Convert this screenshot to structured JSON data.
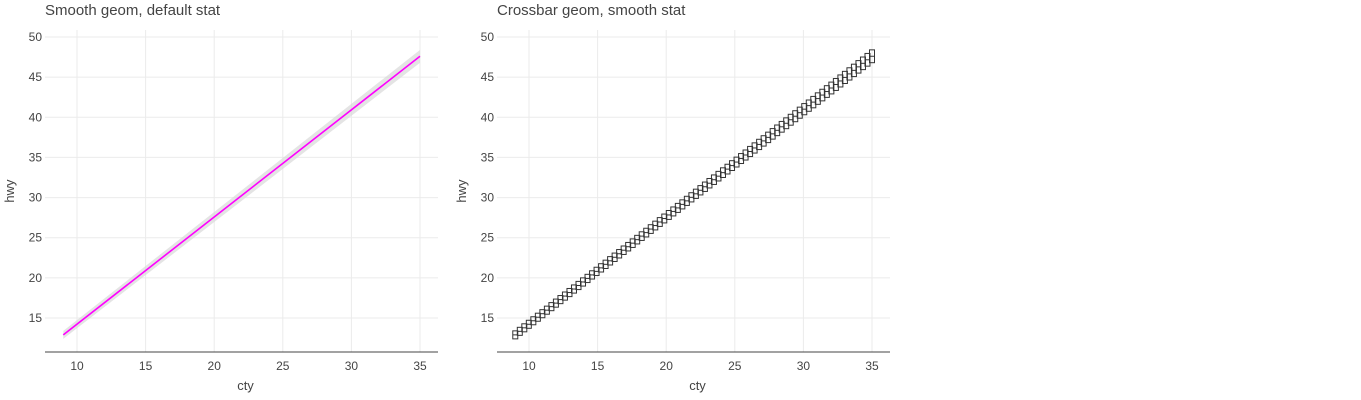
{
  "chart_data": [
    {
      "type": "line",
      "title": "Smooth geom, default stat",
      "xlabel": "cty",
      "ylabel": "hwy",
      "xlim": [
        8,
        36
      ],
      "ylim": [
        10.5,
        51.5
      ],
      "xticks": [
        10,
        15,
        20,
        25,
        30,
        35
      ],
      "yticks": [
        15,
        20,
        25,
        30,
        35,
        40,
        45,
        50
      ],
      "grid": true,
      "colors": {
        "line": "#ff00ff",
        "band": "#d9d9d9"
      },
      "series": [
        {
          "x": [
            9,
            35
          ],
          "y": [
            12.9,
            47.6
          ],
          "ymin": [
            12.4,
            46.8
          ],
          "ymax": [
            13.4,
            48.4
          ]
        }
      ]
    },
    {
      "type": "crossbar",
      "title": "Crossbar geom, smooth stat",
      "xlabel": "cty",
      "ylabel": "hwy",
      "xlim": [
        8,
        36
      ],
      "ylim": [
        10.5,
        51.5
      ],
      "xticks": [
        10,
        15,
        20,
        25,
        30,
        35
      ],
      "yticks": [
        15,
        20,
        25,
        30,
        35,
        40,
        45,
        50
      ],
      "grid": true,
      "colors": {
        "box": "#333333"
      },
      "series": [
        {
          "x_range": [
            9,
            35
          ],
          "count": 80,
          "y_at_xmin": 12.9,
          "y_at_xmax": 47.6,
          "band_at_xmin": 0.5,
          "band_at_xmax": 0.8
        }
      ]
    }
  ]
}
